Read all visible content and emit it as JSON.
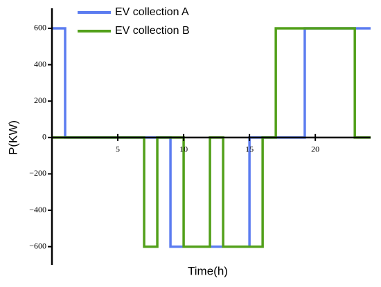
{
  "chart_data": {
    "type": "line",
    "x_label": "Time(h)",
    "y_label": "P(KW)",
    "xlim": [
      0,
      24.2
    ],
    "ylim": [
      -700,
      710
    ],
    "xticks": [
      5,
      10,
      15,
      20
    ],
    "yticks": [
      {
        "value": -600,
        "label": "−600"
      },
      {
        "value": -400,
        "label": "−400"
      },
      {
        "value": -200,
        "label": "−200"
      },
      0,
      200,
      400,
      600
    ],
    "legend": "upper-left",
    "series": [
      {
        "name": "EV collection A",
        "color": "#5b7cf0",
        "x": [
          0,
          1,
          1,
          9,
          9,
          15,
          15,
          19.2,
          19.2,
          24.2
        ],
        "values": [
          600,
          600,
          0,
          0,
          -600,
          -600,
          0,
          0,
          600,
          600
        ]
      },
      {
        "name": "EV collection B",
        "color": "#52a01a",
        "x": [
          0,
          7,
          7,
          8,
          8,
          10,
          10,
          12,
          12,
          13,
          13,
          16,
          16,
          17,
          17,
          23,
          23,
          24.2
        ],
        "values": [
          0,
          0,
          -600,
          -600,
          0,
          0,
          -600,
          -600,
          0,
          0,
          -600,
          -600,
          0,
          0,
          600,
          600,
          0,
          0
        ]
      }
    ]
  }
}
